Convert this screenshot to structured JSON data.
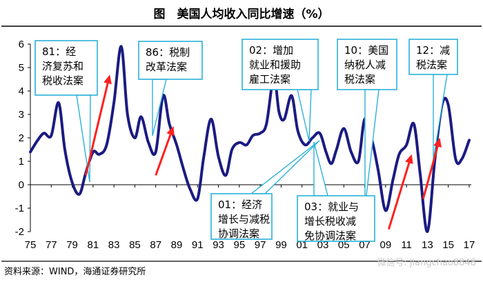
{
  "title": "图　美国人均收入同比增速（%）",
  "source": "资料来源：WIND，海通证券研究所",
  "watermark": "微信号: jiangchao8848",
  "colors": {
    "line": "#1b1b82",
    "arrow": "#ff2020",
    "box_border": "#2ab1d9",
    "axis": "#000000"
  },
  "chart_data": {
    "type": "line",
    "title": "美国人均收入同比增速（%）",
    "xlabel": "",
    "ylabel": "",
    "xlim": [
      1975,
      2017.2
    ],
    "ylim": [
      -2,
      6
    ],
    "yticks": [
      -2,
      -1,
      0,
      1,
      2,
      3,
      4,
      5,
      6
    ],
    "xtick_labels": [
      "75",
      "77",
      "79",
      "81",
      "83",
      "85",
      "87",
      "89",
      "91",
      "93",
      "95",
      "97",
      "99",
      "01",
      "03",
      "05",
      "07",
      "09",
      "11",
      "13",
      "15",
      "17"
    ],
    "xtick_values": [
      1975,
      1977,
      1979,
      1981,
      1983,
      1985,
      1987,
      1989,
      1991,
      1993,
      1995,
      1997,
      1999,
      2001,
      2003,
      2005,
      2007,
      2009,
      2011,
      2013,
      2015,
      2017
    ],
    "series": [
      {
        "name": "美国人均收入同比增速",
        "x": [
          1975,
          1975.7,
          1976.3,
          1977.0,
          1977.7,
          1978.3,
          1979.0,
          1979.7,
          1980.3,
          1981.0,
          1981.6,
          1982.3,
          1983.0,
          1983.7,
          1984.3,
          1985.0,
          1985.6,
          1986.3,
          1987.0,
          1987.7,
          1988.3,
          1989.0,
          1989.7,
          1990.3,
          1991.0,
          1991.6,
          1992.3,
          1993.0,
          1993.7,
          1994.3,
          1995.0,
          1995.7,
          1996.3,
          1997.0,
          1997.6,
          1998.3,
          1998.8,
          1999.3,
          2000.0,
          2000.6,
          2001.3,
          2002.0,
          2002.7,
          2003.3,
          2003.8,
          2004.3,
          2005.0,
          2005.7,
          2006.4,
          2007.0,
          2007.7,
          2008.3,
          2009.0,
          2009.7,
          2010.3,
          2011.0,
          2011.7,
          2012.3,
          2013.0,
          2013.7,
          2014.4,
          2015.0,
          2015.7,
          2016.3,
          2017.0
        ],
        "y": [
          1.4,
          1.9,
          2.2,
          2.1,
          3.5,
          1.5,
          0.1,
          -0.4,
          0.5,
          1.4,
          1.3,
          1.7,
          3.5,
          5.9,
          3.0,
          2.0,
          2.9,
          1.8,
          1.4,
          3.8,
          2.6,
          1.7,
          0.6,
          -0.2,
          -0.6,
          1.2,
          2.8,
          1.2,
          0.4,
          1.5,
          1.8,
          1.7,
          2.1,
          2.2,
          2.6,
          4.6,
          3.1,
          2.8,
          3.8,
          2.3,
          1.7,
          2.0,
          2.2,
          1.4,
          0.9,
          1.5,
          2.4,
          1.4,
          1.0,
          2.8,
          1.9,
          0.6,
          -1.1,
          0.2,
          1.3,
          1.7,
          2.6,
          0.5,
          -2.0,
          1.0,
          3.4,
          3.4,
          1.1,
          1.1,
          1.9
        ]
      }
    ],
    "annotations": [
      {
        "id": "81",
        "lines": [
          "81：经",
          "济复苏和",
          "税收法案"
        ],
        "x": 1981.0
      },
      {
        "id": "86",
        "lines": [
          "86：税制",
          "改革法案"
        ],
        "x": 1986.3
      },
      {
        "id": "02",
        "lines": [
          "02：增加",
          "就业和援助",
          "雇工法案"
        ],
        "x": 2002.0
      },
      {
        "id": "10",
        "lines": [
          "10：美国",
          "纳税人减",
          "税法案"
        ],
        "x": 2010.3
      },
      {
        "id": "12",
        "lines": [
          "12：减",
          "税法案"
        ],
        "x": 2013.0
      },
      {
        "id": "01",
        "lines": [
          "01：经济",
          "增长与减税",
          "协调法案"
        ],
        "x": 2001.3
      },
      {
        "id": "03",
        "lines": [
          "03：就业与",
          "增长税收减",
          "免协调法案"
        ],
        "x": 2003.3
      }
    ],
    "arrows": [
      {
        "from": [
          1980.3,
          0.4
        ],
        "to": [
          1982.6,
          4.7
        ]
      },
      {
        "from": [
          1987.0,
          0.4
        ],
        "to": [
          1988.7,
          2.5
        ]
      },
      {
        "from": [
          2009.3,
          -1.9
        ],
        "to": [
          2011.5,
          1.3
        ]
      },
      {
        "from": [
          2012.6,
          -0.6
        ],
        "to": [
          2014.2,
          2.0
        ]
      }
    ]
  }
}
